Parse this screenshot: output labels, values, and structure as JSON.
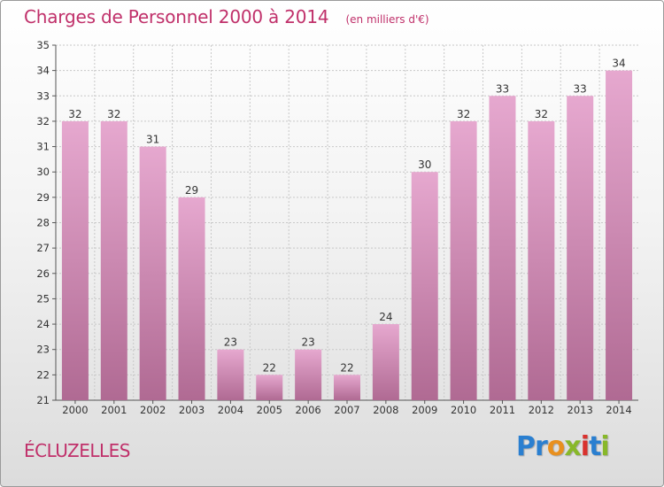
{
  "title": "Charges de Personnel 2000 à 2014",
  "unit": "(en milliers d'€)",
  "town": "ÉCLUZELLES",
  "logo": {
    "text": "Proxiti",
    "colors": [
      "#2a7fd0",
      "#2a7fd0",
      "#e8901f",
      "#88b82a",
      "#d9322e",
      "#2a7fd0",
      "#88b82a"
    ]
  },
  "colors": {
    "accent": "#c0306a",
    "bar_top": "#e6a8cf",
    "bar_bottom": "#b06a93"
  },
  "chart_data": {
    "type": "bar",
    "categories": [
      "2000",
      "2001",
      "2002",
      "2003",
      "2004",
      "2005",
      "2006",
      "2007",
      "2008",
      "2009",
      "2010",
      "2011",
      "2012",
      "2013",
      "2014"
    ],
    "values": [
      32,
      32,
      31,
      29,
      23,
      22,
      23,
      22,
      24,
      30,
      32,
      33,
      32,
      33,
      34
    ],
    "ylim": [
      21,
      35
    ],
    "yticks": [
      21,
      22,
      23,
      24,
      25,
      26,
      27,
      28,
      29,
      30,
      31,
      32,
      33,
      34,
      35
    ],
    "grid": true,
    "legend": "none"
  }
}
